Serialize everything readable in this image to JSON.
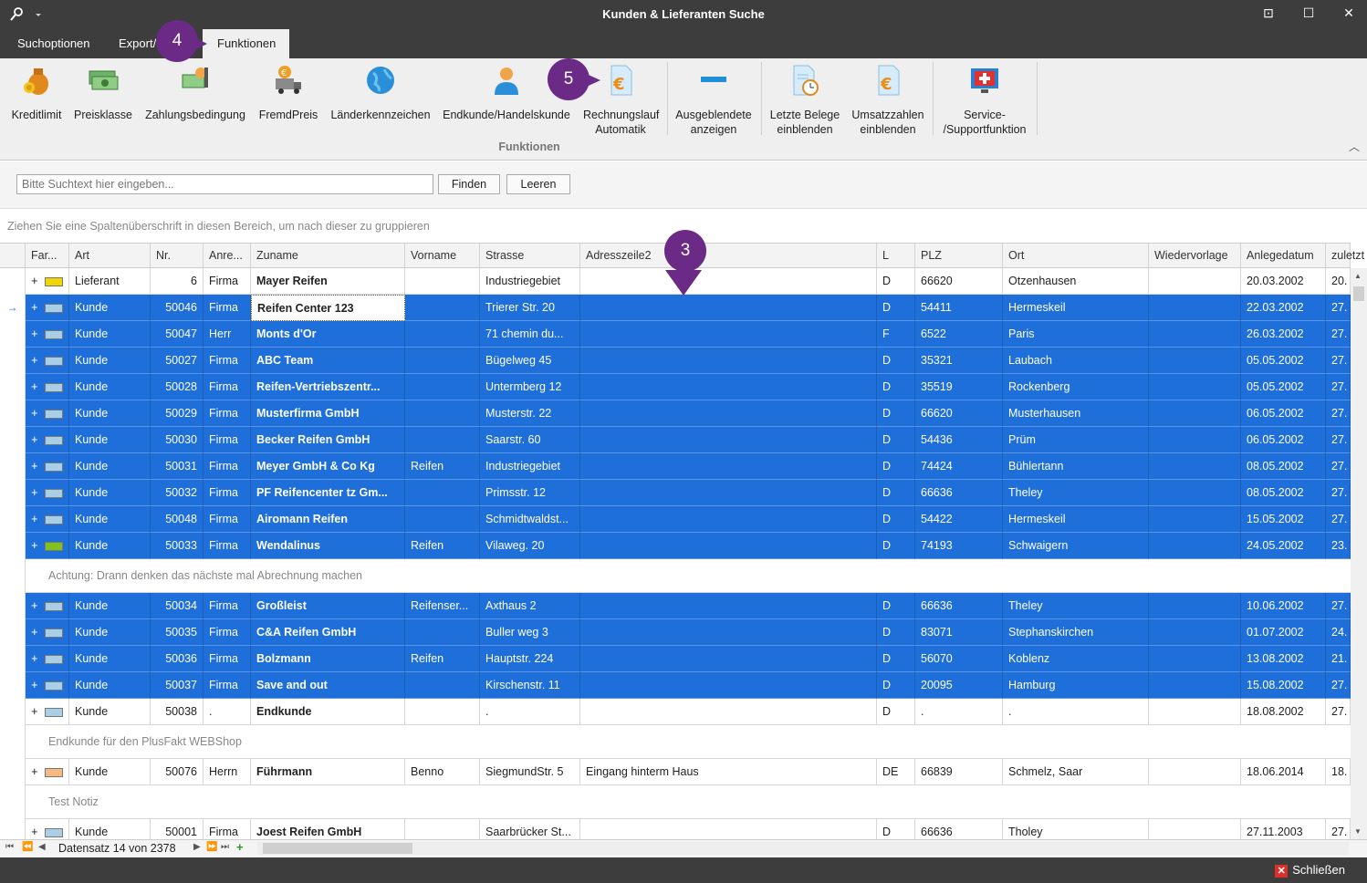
{
  "window": {
    "title": "Kunden & Lieferanten Suche"
  },
  "tabs": [
    {
      "label": "Suchoptionen"
    },
    {
      "label": "Export/"
    },
    {
      "label": "Funktionen"
    }
  ],
  "ribbon": {
    "buttons": [
      {
        "label": "Kreditlimit",
        "icon": "money-bag-icon"
      },
      {
        "label": "Preisklasse",
        "icon": "banknotes-icon"
      },
      {
        "label": "Zahlungsbedingung",
        "icon": "payment-hand-icon"
      },
      {
        "label": "FremdPreis",
        "icon": "euro-truck-icon"
      },
      {
        "label": "Länderkennzeichen",
        "icon": "globe-icon"
      },
      {
        "label": "Endkunde/Handelskunde",
        "icon": "customer-person-icon"
      },
      {
        "label": "Rechnungslauf Automatik",
        "icon": "invoice-euro-icon"
      },
      {
        "label": "Ausgeblendete anzeigen",
        "icon": "minus-bar-icon"
      },
      {
        "label": "Letzte Belege einblenden",
        "icon": "document-clock-icon"
      },
      {
        "label": "Umsatzzahlen einblenden",
        "icon": "document-euro-icon"
      },
      {
        "label": "Service- /Supportfunktion",
        "icon": "support-cross-icon"
      }
    ],
    "group_label": "Funktionen"
  },
  "search": {
    "placeholder": "Bitte Suchtext hier eingeben...",
    "find_label": "Finden",
    "clear_label": "Leeren"
  },
  "group_hint": "Ziehen Sie eine Spaltenüberschrift in diesen Bereich, um nach dieser zu gruppieren",
  "columns": [
    "Far...",
    "Art",
    "Nr.",
    "Anre...",
    "Zuname",
    "Vorname",
    "Strasse",
    "Adresszeile2",
    "L",
    "PLZ",
    "Ort",
    "Wiedervorlage",
    "Anlegedatum",
    "zuletzt"
  ],
  "rows": [
    {
      "color": "#f2d600",
      "art": "Lieferant",
      "nr": "6",
      "anrede": "Firma",
      "zuname": "Mayer Reifen",
      "vorname": "",
      "strasse": "Industriegebiet",
      "adr2": "",
      "l": "D",
      "plz": "66620",
      "ort": "Otzenhausen",
      "wv": "",
      "anlage": "20.03.2002",
      "zuletzt": "20.",
      "sel": false
    },
    {
      "color": "#a8cfe6",
      "art": "Kunde",
      "nr": "50046",
      "anrede": "Firma",
      "zuname": "Reifen Center 123",
      "vorname": "",
      "strasse": "Trierer Str. 20",
      "adr2": "",
      "l": "D",
      "plz": "54411",
      "ort": "Hermeskeil",
      "wv": "",
      "anlage": "22.03.2002",
      "zuletzt": "27.",
      "sel": true,
      "focus": true
    },
    {
      "color": "#a8cfe6",
      "art": "Kunde",
      "nr": "50047",
      "anrede": "Herr",
      "zuname": "Monts d'Or",
      "vorname": "",
      "strasse": "71 chemin du...",
      "adr2": "",
      "l": "F",
      "plz": "6522",
      "ort": "Paris",
      "wv": "",
      "anlage": "26.03.2002",
      "zuletzt": "27.",
      "sel": true
    },
    {
      "color": "#a8cfe6",
      "art": "Kunde",
      "nr": "50027",
      "anrede": "Firma",
      "zuname": "ABC Team",
      "vorname": "",
      "strasse": "Bügelweg 45",
      "adr2": "",
      "l": "D",
      "plz": "35321",
      "ort": "Laubach",
      "wv": "",
      "anlage": "05.05.2002",
      "zuletzt": "27.",
      "sel": true
    },
    {
      "color": "#a8cfe6",
      "art": "Kunde",
      "nr": "50028",
      "anrede": "Firma",
      "zuname": "Reifen-Vertriebszentr...",
      "vorname": "",
      "strasse": "Untermberg 12",
      "adr2": "",
      "l": "D",
      "plz": "35519",
      "ort": "Rockenberg",
      "wv": "",
      "anlage": "05.05.2002",
      "zuletzt": "27.",
      "sel": true
    },
    {
      "color": "#a8cfe6",
      "art": "Kunde",
      "nr": "50029",
      "anrede": "Firma",
      "zuname": "Musterfirma GmbH",
      "vorname": "",
      "strasse": "Musterstr. 22",
      "adr2": "",
      "l": "D",
      "plz": "66620",
      "ort": "Musterhausen",
      "wv": "",
      "anlage": "06.05.2002",
      "zuletzt": "27.",
      "sel": true
    },
    {
      "color": "#a8cfe6",
      "art": "Kunde",
      "nr": "50030",
      "anrede": "Firma",
      "zuname": "Becker Reifen GmbH",
      "vorname": "",
      "strasse": "Saarstr. 60",
      "adr2": "",
      "l": "D",
      "plz": "54436",
      "ort": "Prüm",
      "wv": "",
      "anlage": "06.05.2002",
      "zuletzt": "27.",
      "sel": true
    },
    {
      "color": "#a8cfe6",
      "art": "Kunde",
      "nr": "50031",
      "anrede": "Firma",
      "zuname": "Meyer GmbH & Co Kg",
      "vorname": "Reifen",
      "strasse": "Industriegebiet",
      "adr2": "",
      "l": "D",
      "plz": "74424",
      "ort": "Bühlertann",
      "wv": "",
      "anlage": "08.05.2002",
      "zuletzt": "27.",
      "sel": true
    },
    {
      "color": "#a8cfe6",
      "art": "Kunde",
      "nr": "50032",
      "anrede": "Firma",
      "zuname": "PF Reifencenter tz Gm...",
      "vorname": "",
      "strasse": "Primsstr. 12",
      "adr2": "",
      "l": "D",
      "plz": "66636",
      "ort": "Theley",
      "wv": "",
      "anlage": "08.05.2002",
      "zuletzt": "27.",
      "sel": true
    },
    {
      "color": "#a8cfe6",
      "art": "Kunde",
      "nr": "50048",
      "anrede": "Firma",
      "zuname": "Airomann Reifen",
      "vorname": "",
      "strasse": "Schmidtwaldst...",
      "adr2": "",
      "l": "D",
      "plz": "54422",
      "ort": "Hermeskeil",
      "wv": "",
      "anlage": "15.05.2002",
      "zuletzt": "27.",
      "sel": true
    },
    {
      "color": "#7fc31c",
      "art": "Kunde",
      "nr": "50033",
      "anrede": "Firma",
      "zuname": "Wendalinus",
      "vorname": "Reifen",
      "strasse": "Vilaweg. 20",
      "adr2": "",
      "l": "D",
      "plz": "74193",
      "ort": "Schwaigern",
      "wv": "",
      "anlage": "24.05.2002",
      "zuletzt": "23.",
      "sel": true,
      "note": "Achtung: Drann denken das nächste mal Abrechnung machen"
    },
    {
      "color": "#a8cfe6",
      "art": "Kunde",
      "nr": "50034",
      "anrede": "Firma",
      "zuname": "Großleist",
      "vorname": "Reifenser...",
      "strasse": "Axthaus 2",
      "adr2": "",
      "l": "D",
      "plz": "66636",
      "ort": "Theley",
      "wv": "",
      "anlage": "10.06.2002",
      "zuletzt": "27.",
      "sel": true
    },
    {
      "color": "#a8cfe6",
      "art": "Kunde",
      "nr": "50035",
      "anrede": "Firma",
      "zuname": "C&A Reifen GmbH",
      "vorname": "",
      "strasse": "Buller weg 3",
      "adr2": "",
      "l": "D",
      "plz": "83071",
      "ort": "Stephanskirchen",
      "wv": "",
      "anlage": "01.07.2002",
      "zuletzt": "24.",
      "sel": true
    },
    {
      "color": "#a8cfe6",
      "art": "Kunde",
      "nr": "50036",
      "anrede": "Firma",
      "zuname": "Bolzmann",
      "vorname": "Reifen",
      "strasse": "Hauptstr. 224",
      "adr2": "",
      "l": "D",
      "plz": "56070",
      "ort": "Koblenz",
      "wv": "",
      "anlage": "13.08.2002",
      "zuletzt": "21.",
      "sel": true
    },
    {
      "color": "#a8cfe6",
      "art": "Kunde",
      "nr": "50037",
      "anrede": "Firma",
      "zuname": "Save and out",
      "vorname": "",
      "strasse": "Kirschenstr. 11",
      "adr2": "",
      "l": "D",
      "plz": "20095",
      "ort": "Hamburg",
      "wv": "",
      "anlage": "15.08.2002",
      "zuletzt": "27.",
      "sel": true
    },
    {
      "color": "#a8cfe6",
      "art": "Kunde",
      "nr": "50038",
      "anrede": ".",
      "zuname": "Endkunde",
      "vorname": "",
      "strasse": ".",
      "adr2": "",
      "l": "D",
      "plz": ".",
      "ort": ".",
      "wv": "",
      "anlage": "18.08.2002",
      "zuletzt": "27.",
      "sel": false,
      "note": "Endkunde für den PlusFakt WEBShop"
    },
    {
      "color": "#f8b980",
      "art": "Kunde",
      "nr": "50076",
      "anrede": "Herrn",
      "zuname": "Führmann",
      "vorname": "Benno",
      "strasse": "SiegmundStr. 5",
      "adr2": "Eingang hinterm Haus",
      "l": "DE",
      "plz": "66839",
      "ort": "Schmelz, Saar",
      "wv": "",
      "anlage": "18.06.2014",
      "zuletzt": "18.",
      "sel": false,
      "note": "Test Notiz"
    },
    {
      "color": "#a8cfe6",
      "art": "Kunde",
      "nr": "50001",
      "anrede": "Firma",
      "zuname": "Joest Reifen GmbH",
      "vorname": "",
      "strasse": "Saarbrücker St...",
      "adr2": "",
      "l": "D",
      "plz": "66636",
      "ort": "Tholey",
      "wv": "",
      "anlage": "27.11.2003",
      "zuletzt": "27.",
      "sel": false
    }
  ],
  "footer": {
    "record_text": "Datensatz 14 von 2378"
  },
  "status": {
    "close_label": "Schließen"
  },
  "badges": [
    {
      "label": "4"
    },
    {
      "label": "5"
    },
    {
      "label": "3"
    }
  ]
}
